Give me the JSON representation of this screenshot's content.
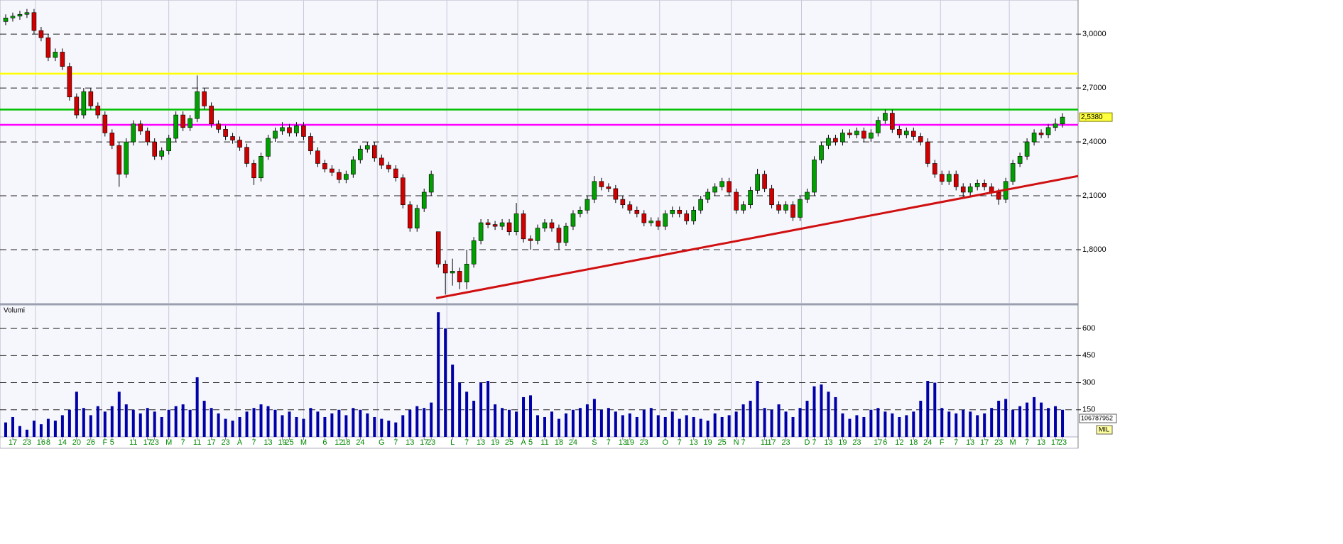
{
  "chart_data": [
    {
      "type": "candlestick",
      "categories": [
        null,
        "17",
        null,
        "23",
        null,
        "16",
        "8",
        null,
        "14",
        null,
        "20",
        null,
        "26",
        null,
        "F",
        "5",
        null,
        null,
        "11",
        null,
        "17",
        "23",
        null,
        "M",
        null,
        "7",
        null,
        "11",
        null,
        "17",
        null,
        "23",
        null,
        "A",
        null,
        "7",
        null,
        "13",
        null,
        "19",
        "25",
        null,
        "M",
        null,
        null,
        "6",
        null,
        "12",
        "18",
        null,
        "24",
        null,
        null,
        "G",
        null,
        "7",
        null,
        "13",
        null,
        "17",
        "23",
        null,
        null,
        "L",
        null,
        "7",
        null,
        "13",
        null,
        "19",
        null,
        "25",
        null,
        "A",
        "5",
        null,
        "11",
        null,
        "18",
        null,
        "24",
        null,
        null,
        "S",
        null,
        "7",
        null,
        "13",
        "19",
        null,
        "23",
        null,
        null,
        "O",
        null,
        "7",
        null,
        "13",
        null,
        "19",
        null,
        "25",
        null,
        "N",
        "7",
        null,
        null,
        "11",
        "17",
        null,
        "23",
        null,
        null,
        "D",
        "7",
        null,
        "13",
        null,
        "19",
        null,
        "23",
        null,
        null,
        "17",
        "6",
        null,
        "12",
        null,
        "18",
        null,
        "24",
        null,
        "F",
        null,
        "7",
        null,
        "13",
        null,
        "17",
        null,
        "23",
        null,
        "M",
        null,
        "7",
        null,
        "13",
        null,
        "17",
        "23"
      ],
      "open": [
        3.07,
        3.09,
        3.1,
        3.11,
        3.12,
        3.02,
        2.98,
        2.87,
        2.9,
        2.82,
        2.65,
        2.55,
        2.68,
        2.6,
        2.55,
        2.45,
        2.38,
        2.22,
        2.4,
        2.5,
        2.46,
        2.4,
        2.32,
        2.35,
        2.42,
        2.55,
        2.48,
        2.53,
        2.68,
        2.6,
        2.5,
        2.47,
        2.43,
        2.41,
        2.37,
        2.28,
        2.2,
        2.32,
        2.42,
        2.46,
        2.48,
        2.45,
        2.49,
        2.43,
        2.35,
        2.28,
        2.25,
        2.23,
        2.19,
        2.22,
        2.3,
        2.36,
        2.38,
        2.31,
        2.27,
        2.25,
        2.2,
        2.05,
        1.92,
        2.03,
        2.12,
        1.9,
        1.72,
        1.67,
        1.68,
        1.62,
        1.72,
        1.85,
        1.95,
        1.94,
        1.93,
        1.95,
        1.9,
        2.0,
        1.86,
        1.85,
        1.92,
        1.95,
        1.92,
        1.84,
        1.93,
        2.0,
        2.02,
        2.08,
        2.18,
        2.15,
        2.14,
        2.08,
        2.05,
        2.02,
        2.0,
        1.95,
        1.96,
        1.93,
        2.0,
        2.02,
        2.0,
        1.96,
        2.02,
        2.08,
        2.12,
        2.15,
        2.18,
        2.12,
        2.02,
        2.05,
        2.13,
        2.22,
        2.14,
        2.05,
        2.02,
        2.05,
        1.98,
        2.08,
        2.12,
        2.3,
        2.38,
        2.42,
        2.4,
        2.45,
        2.44,
        2.46,
        2.42,
        2.45,
        2.52,
        2.56,
        2.47,
        2.44,
        2.46,
        2.43,
        2.4,
        2.28,
        2.22,
        2.18,
        2.22,
        2.15,
        2.12,
        2.15,
        2.17,
        2.15,
        2.12,
        2.08,
        2.18,
        2.28,
        2.32,
        2.4,
        2.45,
        2.44,
        2.48,
        2.5
      ],
      "high": [
        3.11,
        3.12,
        3.13,
        3.14,
        3.14,
        3.04,
        3.0,
        2.92,
        2.92,
        2.84,
        2.67,
        2.7,
        2.7,
        2.62,
        2.57,
        2.47,
        2.4,
        2.42,
        2.52,
        2.52,
        2.48,
        2.42,
        2.37,
        2.44,
        2.57,
        2.57,
        2.55,
        2.77,
        2.7,
        2.62,
        2.52,
        2.49,
        2.45,
        2.43,
        2.39,
        2.3,
        2.34,
        2.44,
        2.48,
        2.51,
        2.5,
        2.51,
        2.51,
        2.45,
        2.37,
        2.3,
        2.27,
        2.25,
        2.24,
        2.32,
        2.38,
        2.4,
        2.4,
        2.33,
        2.29,
        2.27,
        2.22,
        2.07,
        2.05,
        2.14,
        2.24,
        1.9,
        1.74,
        1.75,
        1.7,
        1.8,
        1.87,
        1.97,
        1.97,
        1.96,
        1.97,
        1.97,
        2.06,
        2.02,
        1.88,
        1.94,
        1.97,
        1.97,
        1.94,
        1.95,
        2.02,
        2.04,
        2.1,
        2.21,
        2.2,
        2.17,
        2.16,
        2.1,
        2.07,
        2.04,
        2.02,
        1.98,
        1.98,
        2.02,
        2.04,
        2.04,
        2.02,
        2.04,
        2.1,
        2.14,
        2.17,
        2.2,
        2.2,
        2.14,
        2.07,
        2.15,
        2.25,
        2.24,
        2.16,
        2.07,
        2.07,
        2.07,
        2.1,
        2.14,
        2.32,
        2.4,
        2.44,
        2.44,
        2.47,
        2.47,
        2.48,
        2.48,
        2.47,
        2.54,
        2.58,
        2.58,
        2.49,
        2.48,
        2.48,
        2.45,
        2.42,
        2.3,
        2.24,
        2.24,
        2.24,
        2.17,
        2.17,
        2.19,
        2.19,
        2.17,
        2.14,
        2.2,
        2.3,
        2.34,
        2.42,
        2.47,
        2.47,
        2.5,
        2.53,
        2.56
      ],
      "low": [
        3.05,
        3.07,
        3.08,
        3.09,
        3.0,
        2.96,
        2.85,
        2.85,
        2.8,
        2.63,
        2.53,
        2.53,
        2.58,
        2.53,
        2.43,
        2.36,
        2.15,
        2.2,
        2.38,
        2.44,
        2.38,
        2.3,
        2.3,
        2.33,
        2.4,
        2.46,
        2.46,
        2.51,
        2.58,
        2.48,
        2.45,
        2.41,
        2.39,
        2.35,
        2.26,
        2.16,
        2.18,
        2.3,
        2.4,
        2.44,
        2.43,
        2.43,
        2.41,
        2.33,
        2.26,
        2.23,
        2.21,
        2.17,
        2.17,
        2.2,
        2.28,
        2.34,
        2.29,
        2.25,
        2.23,
        2.18,
        2.03,
        1.9,
        1.9,
        2.01,
        2.1,
        1.7,
        1.55,
        1.6,
        1.58,
        1.58,
        1.7,
        1.83,
        1.92,
        1.91,
        1.91,
        1.88,
        1.88,
        1.84,
        1.8,
        1.83,
        1.9,
        1.9,
        1.8,
        1.82,
        1.91,
        1.98,
        2.0,
        2.06,
        2.13,
        2.12,
        2.06,
        2.03,
        2.0,
        1.98,
        1.93,
        1.93,
        1.91,
        1.91,
        1.98,
        1.98,
        1.94,
        1.94,
        2.0,
        2.06,
        2.1,
        2.13,
        2.1,
        2.0,
        2.0,
        2.03,
        2.11,
        2.12,
        2.03,
        2.0,
        2.0,
        1.96,
        1.96,
        2.06,
        2.1,
        2.28,
        2.36,
        2.38,
        2.38,
        2.42,
        2.42,
        2.4,
        2.4,
        2.43,
        2.5,
        2.45,
        2.42,
        2.42,
        2.41,
        2.38,
        2.26,
        2.2,
        2.16,
        2.16,
        2.13,
        2.09,
        2.1,
        2.13,
        2.13,
        2.1,
        2.05,
        2.06,
        2.16,
        2.26,
        2.3,
        2.38,
        2.42,
        2.42,
        2.46,
        2.48
      ],
      "close": [
        3.09,
        3.1,
        3.11,
        3.12,
        3.02,
        2.98,
        2.87,
        2.9,
        2.82,
        2.65,
        2.55,
        2.68,
        2.6,
        2.55,
        2.45,
        2.38,
        2.22,
        2.4,
        2.5,
        2.46,
        2.4,
        2.32,
        2.35,
        2.42,
        2.55,
        2.48,
        2.53,
        2.68,
        2.6,
        2.5,
        2.47,
        2.43,
        2.41,
        2.37,
        2.28,
        2.2,
        2.32,
        2.42,
        2.46,
        2.48,
        2.45,
        2.49,
        2.43,
        2.35,
        2.28,
        2.25,
        2.23,
        2.19,
        2.22,
        2.3,
        2.36,
        2.38,
        2.31,
        2.27,
        2.25,
        2.2,
        2.05,
        1.92,
        2.03,
        2.12,
        2.22,
        1.72,
        1.67,
        1.68,
        1.62,
        1.72,
        1.85,
        1.95,
        1.94,
        1.93,
        1.95,
        1.9,
        2.0,
        1.86,
        1.85,
        1.92,
        1.95,
        1.92,
        1.84,
        1.93,
        2.0,
        2.02,
        2.08,
        2.18,
        2.15,
        2.14,
        2.08,
        2.05,
        2.02,
        2.0,
        1.95,
        1.96,
        1.93,
        2.0,
        2.02,
        2.0,
        1.96,
        2.02,
        2.08,
        2.12,
        2.15,
        2.18,
        2.12,
        2.02,
        2.05,
        2.13,
        2.22,
        2.14,
        2.05,
        2.02,
        2.05,
        1.98,
        2.08,
        2.12,
        2.3,
        2.38,
        2.42,
        2.4,
        2.45,
        2.44,
        2.46,
        2.42,
        2.45,
        2.52,
        2.56,
        2.47,
        2.44,
        2.46,
        2.43,
        2.4,
        2.28,
        2.22,
        2.18,
        2.22,
        2.15,
        2.12,
        2.15,
        2.17,
        2.15,
        2.12,
        2.08,
        2.18,
        2.28,
        2.32,
        2.4,
        2.45,
        2.44,
        2.48,
        2.5,
        2.538
      ],
      "up_color": "#00a000",
      "down_color": "#d00000",
      "xlim": [
        -0.8,
        151.2
      ],
      "xgrid": [
        4.2,
        13.5,
        23,
        32.5,
        42,
        52.4,
        62.2,
        72.2,
        82.1,
        92.2,
        102.3,
        112.2,
        122,
        131.8,
        141.5
      ],
      "ylim": [
        1.5,
        3.19
      ],
      "yticks": [
        {
          "value": 1.8,
          "label": "1,8000"
        },
        {
          "value": 2.1,
          "label": "2,1000"
        },
        {
          "value": 2.4,
          "label": "2,4000"
        },
        {
          "value": 2.7,
          "label": "2,7000"
        },
        {
          "value": 3.0,
          "label": "3,0000"
        }
      ],
      "hlines": [
        {
          "value": 2.78,
          "color": "#ffff00"
        },
        {
          "value": 2.58,
          "color": "#00c000"
        },
        {
          "value": 2.495,
          "color": "#ff00ff"
        }
      ],
      "trendline": {
        "x": [
          60.7,
          151.2
        ],
        "y": [
          1.53,
          2.21
        ],
        "color": "#d01010"
      },
      "last_price": {
        "value": 2.538,
        "label": "2,5380"
      }
    },
    {
      "type": "bar",
      "title": "Volumi",
      "unit": "MIL",
      "last_volume": 106787952,
      "color": "#0000a8",
      "values": [
        80,
        110,
        60,
        40,
        90,
        70,
        100,
        90,
        120,
        150,
        250,
        160,
        120,
        170,
        140,
        170,
        250,
        180,
        150,
        130,
        160,
        140,
        110,
        150,
        170,
        180,
        150,
        330,
        200,
        160,
        130,
        100,
        90,
        110,
        140,
        160,
        180,
        170,
        150,
        120,
        140,
        110,
        100,
        160,
        140,
        110,
        130,
        150,
        120,
        160,
        150,
        130,
        110,
        100,
        90,
        80,
        120,
        150,
        170,
        160,
        190,
        690,
        600,
        400,
        300,
        250,
        200,
        300,
        310,
        180,
        160,
        150,
        140,
        220,
        230,
        120,
        110,
        140,
        100,
        130,
        150,
        160,
        180,
        210,
        150,
        160,
        140,
        120,
        130,
        110,
        150,
        160,
        120,
        110,
        140,
        100,
        120,
        110,
        100,
        90,
        130,
        110,
        120,
        140,
        180,
        200,
        310,
        160,
        150,
        180,
        140,
        110,
        160,
        200,
        280,
        290,
        250,
        220,
        130,
        100,
        120,
        110,
        150,
        160,
        140,
        130,
        110,
        120,
        140,
        200,
        310,
        300,
        160,
        140,
        130,
        150,
        140,
        120,
        130,
        160,
        200,
        210,
        150,
        170,
        190,
        220,
        190,
        160,
        170,
        150
      ],
      "ylim": [
        0,
        730
      ],
      "yticks": [
        150,
        300,
        450,
        600
      ]
    }
  ]
}
